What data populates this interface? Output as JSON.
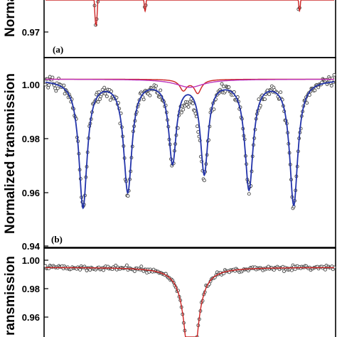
{
  "panels": [
    {
      "id": "a",
      "panel_label": "(a)",
      "ylabel": "Normalized transmission",
      "ylabel_visible": "Norma",
      "yticks": [
        "0.97"
      ],
      "series_colors": {
        "fit": "#cc2222",
        "points": "#444444"
      }
    },
    {
      "id": "b",
      "panel_label": "(b)",
      "ylabel": "Normalized transmission",
      "yticks": [
        "1.00",
        "0.98",
        "0.96",
        "0.94"
      ],
      "series_colors": {
        "sextet": "#2233aa",
        "doublet": "#cc2222",
        "background": "#bb33bb",
        "points": "#444444"
      }
    },
    {
      "id": "c",
      "panel_label": "",
      "ylabel": "Normalized transmission",
      "ylabel_visible": "ransmission",
      "yticks": [
        "1.00",
        "0.98",
        "0.96"
      ],
      "series_colors": {
        "fit": "#cc2222",
        "points": "#444444"
      }
    }
  ],
  "chart_data": [
    {
      "type": "scatter",
      "panel": "a",
      "title": "",
      "xlabel": "",
      "ylabel": "Normalized transmission",
      "ylim": [
        0.965,
        0.985
      ],
      "xlim": [
        -10,
        10
      ],
      "series": [
        {
          "kind": "fit",
          "baseline": 1.0,
          "lines": [
            {
              "x": -6.5,
              "depth": 0.028,
              "width": 0.22
            },
            {
              "x": -3.1,
              "depth": 0.024,
              "width": 0.22
            },
            {
              "x": 7.6,
              "depth": 0.024,
              "width": 0.22
            }
          ]
        }
      ]
    },
    {
      "type": "scatter",
      "panel": "b",
      "title": "",
      "xlabel": "",
      "ylabel": "Normalized transmission",
      "ylim": [
        0.94,
        1.009
      ],
      "xlim": [
        -10,
        10
      ],
      "series": [
        {
          "kind": "sextet",
          "baseline": 1.002,
          "lines": [
            {
              "x": -7.4,
              "depth": 0.047,
              "width": 0.35
            },
            {
              "x": -4.3,
              "depth": 0.041,
              "width": 0.35
            },
            {
              "x": -1.2,
              "depth": 0.03,
              "width": 0.32
            },
            {
              "x": 1.0,
              "depth": 0.034,
              "width": 0.32
            },
            {
              "x": 4.1,
              "depth": 0.04,
              "width": 0.35
            },
            {
              "x": 7.2,
              "depth": 0.046,
              "width": 0.35
            }
          ]
        },
        {
          "kind": "doublet",
          "baseline": 1.002,
          "lines": [
            {
              "x": -0.45,
              "depth": 0.004,
              "width": 0.3
            },
            {
              "x": 0.55,
              "depth": 0.005,
              "width": 0.3
            }
          ]
        },
        {
          "kind": "background",
          "baseline": 1.002,
          "lines": [
            {
              "x": 0.0,
              "depth": 0.003,
              "width": 1.2
            }
          ]
        }
      ]
    },
    {
      "type": "scatter",
      "panel": "c",
      "title": "",
      "xlabel": "",
      "ylabel": "Normalized transmission",
      "ylim": [
        0.944,
        1.005
      ],
      "xlim": [
        -10,
        10
      ],
      "series": [
        {
          "kind": "fit",
          "baseline": 0.995,
          "lines": [
            {
              "x": 0.1,
              "depth": 0.09,
              "width": 0.45
            }
          ]
        }
      ]
    }
  ]
}
